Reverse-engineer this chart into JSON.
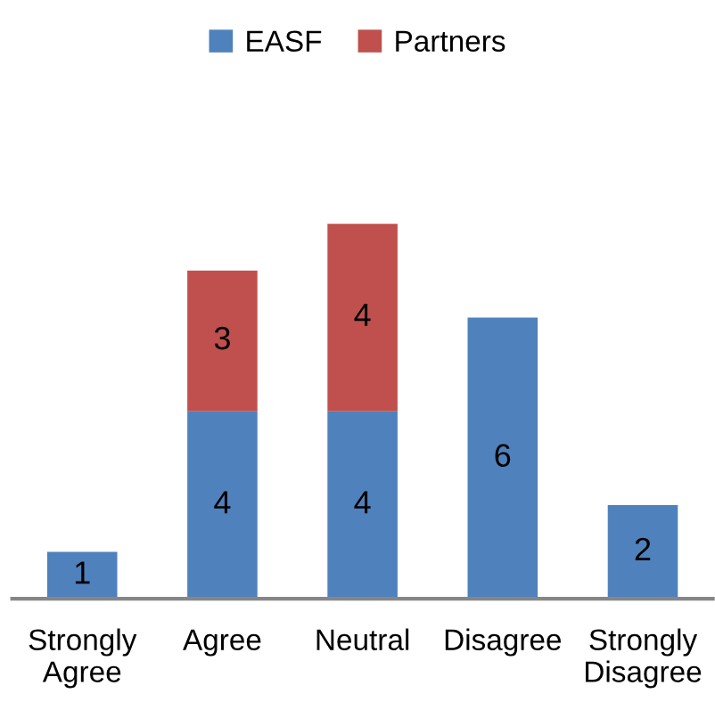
{
  "chart_data": {
    "type": "bar",
    "stacked": true,
    "categories": [
      "Strongly Agree",
      "Agree",
      "Neutral",
      "Disagree",
      "Strongly Disagree"
    ],
    "series": [
      {
        "name": "EASF",
        "color": "#4f81bd",
        "values": [
          1,
          4,
          4,
          6,
          2
        ]
      },
      {
        "name": "Partners",
        "color": "#c0504d",
        "values": [
          null,
          3,
          4,
          null,
          null
        ]
      }
    ],
    "data_labels": true,
    "legend": "top"
  }
}
